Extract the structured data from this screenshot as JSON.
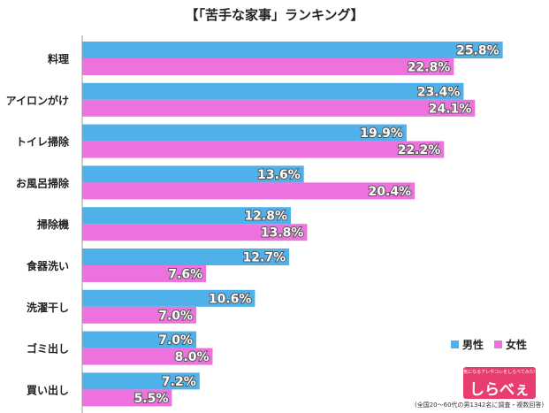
{
  "title": "【「苦手な家事」ランキング】",
  "legend": {
    "male_label": "男性",
    "female_label": "女性"
  },
  "logo": {
    "tagline": "気になるアレやコレをしらべてみた!",
    "name": "しらべぇ"
  },
  "footnote": "(全国20〜60代の男1342名に調査・複数回答)",
  "colors": {
    "male": "#4fb1ea",
    "female": "#ee72de",
    "axis": "#999999"
  },
  "chart_data": {
    "type": "bar",
    "orientation": "horizontal",
    "categories": [
      "料理",
      "アイロンがけ",
      "トイレ掃除",
      "お風呂掃除",
      "掃除機",
      "食器洗い",
      "洗濯干し",
      "ゴミ出し",
      "買い出し"
    ],
    "series": [
      {
        "name": "男性",
        "values": [
          25.8,
          23.4,
          19.9,
          13.6,
          12.8,
          12.7,
          10.6,
          7.0,
          7.2
        ]
      },
      {
        "name": "女性",
        "values": [
          22.8,
          24.1,
          22.2,
          20.4,
          13.8,
          7.6,
          7.0,
          8.0,
          5.5
        ]
      }
    ],
    "value_labels": [
      [
        "25.8%",
        "23.4%",
        "19.9%",
        "13.6%",
        "12.8%",
        "12.7%",
        "10.6%",
        "7.0%",
        "7.2%"
      ],
      [
        "22.8%",
        "24.1%",
        "22.2%",
        "20.4%",
        "13.8%",
        "7.6%",
        "7.0%",
        "8.0%",
        "5.5%"
      ]
    ],
    "xlim": [
      0,
      27.5
    ],
    "legend_position": "bottom-right",
    "grid": false
  }
}
